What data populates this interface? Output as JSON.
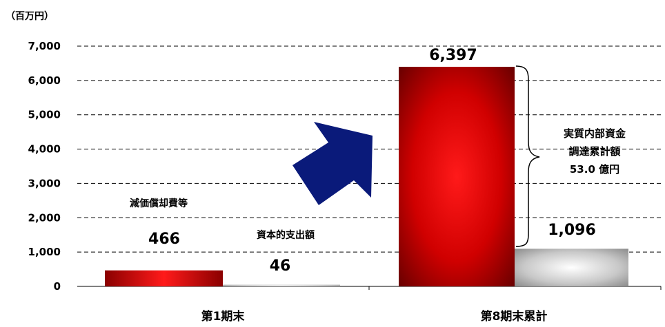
{
  "chart_data": {
    "type": "bar",
    "unit_label": "（百万円）",
    "categories": [
      "第1期末",
      "第8期末累計"
    ],
    "series": [
      {
        "name": "減価償却費等",
        "values": [
          466,
          6397
        ],
        "labels": [
          "466",
          "6,397"
        ],
        "color": "#c00000"
      },
      {
        "name": "資本的支出額",
        "values": [
          46,
          1096
        ],
        "labels": [
          "46",
          "1,096"
        ],
        "color": "#a6a6a6"
      }
    ],
    "ylim": [
      0,
      7000
    ],
    "yticks": [
      0,
      1000,
      2000,
      3000,
      4000,
      5000,
      6000,
      7000
    ],
    "ytick_labels": [
      "0",
      "1,000",
      "2,000",
      "3,000",
      "4,000",
      "5,000",
      "6,000",
      "7,000"
    ],
    "grid": "dashed",
    "annotation_lines": [
      "実質内部資金",
      "調達累計額",
      "53.0 億円"
    ],
    "series_label_text": {
      "depreciation": "減価償却費等",
      "capex": "資本的支出額"
    },
    "colors": {
      "red_dark": "#7a0000",
      "red_bright": "#ff1a1a",
      "gray_dark": "#8c8c8c",
      "gray_light": "#ffffff",
      "arrow": "#0a1a7a"
    }
  }
}
